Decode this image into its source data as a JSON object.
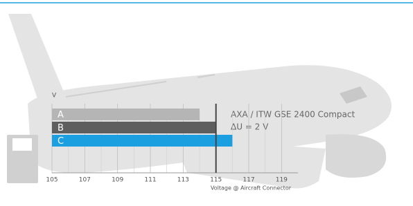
{
  "chart_data": {
    "type": "bar",
    "orientation": "horizontal",
    "categories": [
      "A",
      "B",
      "C"
    ],
    "values": [
      114,
      115,
      116
    ],
    "colors": [
      "#b5b5b5",
      "#5e5e5e",
      "#1b9fe0"
    ],
    "xlim": [
      105,
      120
    ],
    "xticks": [
      105,
      107,
      109,
      111,
      113,
      115,
      117,
      119
    ],
    "xlabel": "Voltage @ Aircraft Connector",
    "ylabel": "V",
    "reference_line": 115,
    "annotations": [
      "AXA / ITW GSE 2400 Compact",
      "ΔU = 2 V"
    ],
    "grid": true
  }
}
